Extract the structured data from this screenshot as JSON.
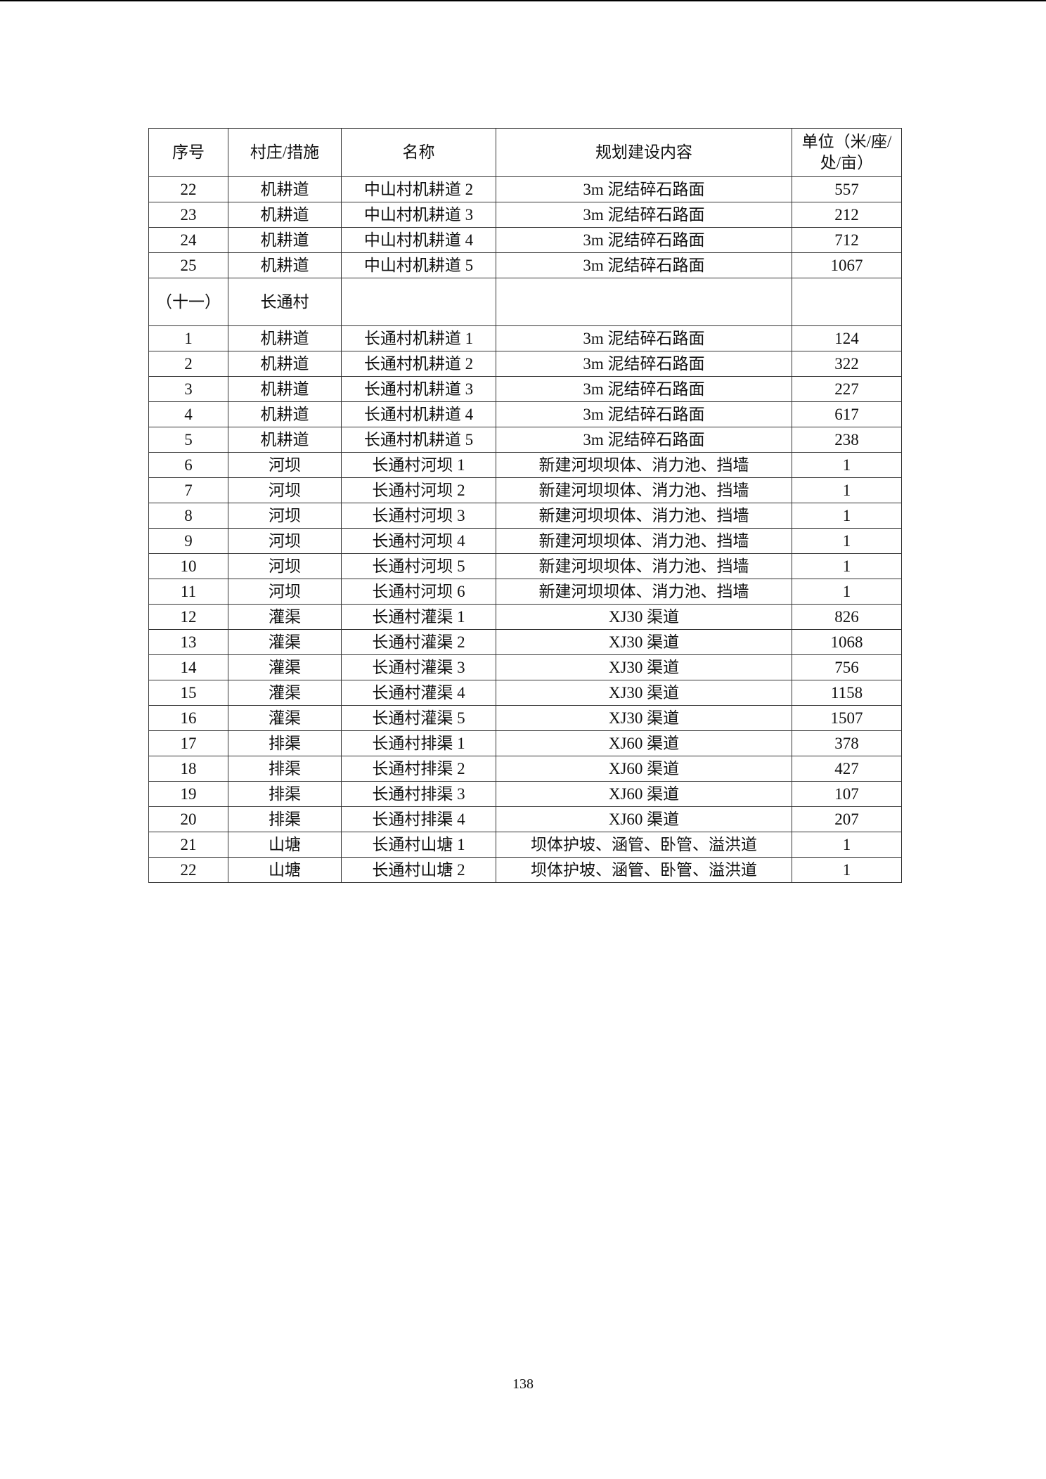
{
  "headers": [
    "序号",
    "村庄/措施",
    "名称",
    "规划建设内容",
    "单位（米/座/处/亩）"
  ],
  "rows": [
    [
      "22",
      "机耕道",
      "中山村机耕道 2",
      "3m 泥结碎石路面",
      "557"
    ],
    [
      "23",
      "机耕道",
      "中山村机耕道 3",
      "3m 泥结碎石路面",
      "212"
    ],
    [
      "24",
      "机耕道",
      "中山村机耕道 4",
      "3m 泥结碎石路面",
      "712"
    ],
    [
      "25",
      "机耕道",
      "中山村机耕道 5",
      "3m 泥结碎石路面",
      "1067"
    ],
    [
      "（十一）",
      "长通村",
      "",
      "",
      ""
    ],
    [
      "1",
      "机耕道",
      "长通村机耕道 1",
      "3m 泥结碎石路面",
      "124"
    ],
    [
      "2",
      "机耕道",
      "长通村机耕道 2",
      "3m 泥结碎石路面",
      "322"
    ],
    [
      "3",
      "机耕道",
      "长通村机耕道 3",
      "3m 泥结碎石路面",
      "227"
    ],
    [
      "4",
      "机耕道",
      "长通村机耕道 4",
      "3m 泥结碎石路面",
      "617"
    ],
    [
      "5",
      "机耕道",
      "长通村机耕道 5",
      "3m 泥结碎石路面",
      "238"
    ],
    [
      "6",
      "河坝",
      "长通村河坝 1",
      "新建河坝坝体、消力池、挡墙",
      "1"
    ],
    [
      "7",
      "河坝",
      "长通村河坝 2",
      "新建河坝坝体、消力池、挡墙",
      "1"
    ],
    [
      "8",
      "河坝",
      "长通村河坝 3",
      "新建河坝坝体、消力池、挡墙",
      "1"
    ],
    [
      "9",
      "河坝",
      "长通村河坝 4",
      "新建河坝坝体、消力池、挡墙",
      "1"
    ],
    [
      "10",
      "河坝",
      "长通村河坝 5",
      "新建河坝坝体、消力池、挡墙",
      "1"
    ],
    [
      "11",
      "河坝",
      "长通村河坝 6",
      "新建河坝坝体、消力池、挡墙",
      "1"
    ],
    [
      "12",
      "灌渠",
      "长通村灌渠 1",
      "XJ30 渠道",
      "826"
    ],
    [
      "13",
      "灌渠",
      "长通村灌渠 2",
      "XJ30 渠道",
      "1068"
    ],
    [
      "14",
      "灌渠",
      "长通村灌渠 3",
      "XJ30 渠道",
      "756"
    ],
    [
      "15",
      "灌渠",
      "长通村灌渠 4",
      "XJ30 渠道",
      "1158"
    ],
    [
      "16",
      "灌渠",
      "长通村灌渠 5",
      "XJ30 渠道",
      "1507"
    ],
    [
      "17",
      "排渠",
      "长通村排渠 1",
      "XJ60 渠道",
      "378"
    ],
    [
      "18",
      "排渠",
      "长通村排渠 2",
      "XJ60 渠道",
      "427"
    ],
    [
      "19",
      "排渠",
      "长通村排渠 3",
      "XJ60 渠道",
      "107"
    ],
    [
      "20",
      "排渠",
      "长通村排渠 4",
      "XJ60 渠道",
      "207"
    ],
    [
      "21",
      "山塘",
      "长通村山塘 1",
      "坝体护坡、涵管、卧管、溢洪道",
      "1"
    ],
    [
      "22",
      "山塘",
      "长通村山塘 2",
      "坝体护坡、涵管、卧管、溢洪道",
      "1"
    ]
  ],
  "page_number": "138"
}
